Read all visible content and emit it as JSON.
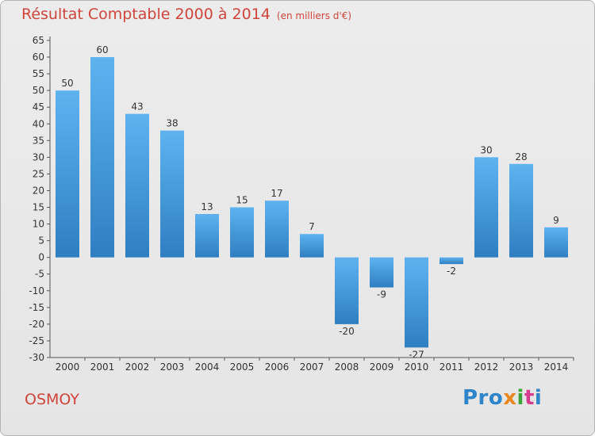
{
  "header": {
    "title": "Résultat Comptable 2000 à 2014",
    "unit": "(en milliers d'€)"
  },
  "commune": "OSMOY",
  "logo": {
    "text": "Proxiti"
  },
  "colors": {
    "bar_top": "#5eb3ef",
    "bar_bottom": "#2e7fc2",
    "title": "#d0443a"
  },
  "chart_data": {
    "type": "bar",
    "title": "Résultat Comptable 2000 à 2014",
    "subtitle": "(en milliers d'€)",
    "categories": [
      "2000",
      "2001",
      "2002",
      "2003",
      "2004",
      "2005",
      "2006",
      "2007",
      "2008",
      "2009",
      "2010",
      "2011",
      "2012",
      "2013",
      "2014"
    ],
    "values": [
      50,
      60,
      43,
      38,
      13,
      15,
      17,
      7,
      -20,
      -9,
      -27,
      -2,
      30,
      28,
      9
    ],
    "ylim": [
      -30,
      65
    ],
    "yticks": [
      65,
      60,
      55,
      50,
      45,
      40,
      35,
      30,
      25,
      20,
      15,
      10,
      5,
      0,
      -5,
      -10,
      -15,
      -20,
      -25,
      -30
    ],
    "grid": false,
    "legend": "none"
  }
}
